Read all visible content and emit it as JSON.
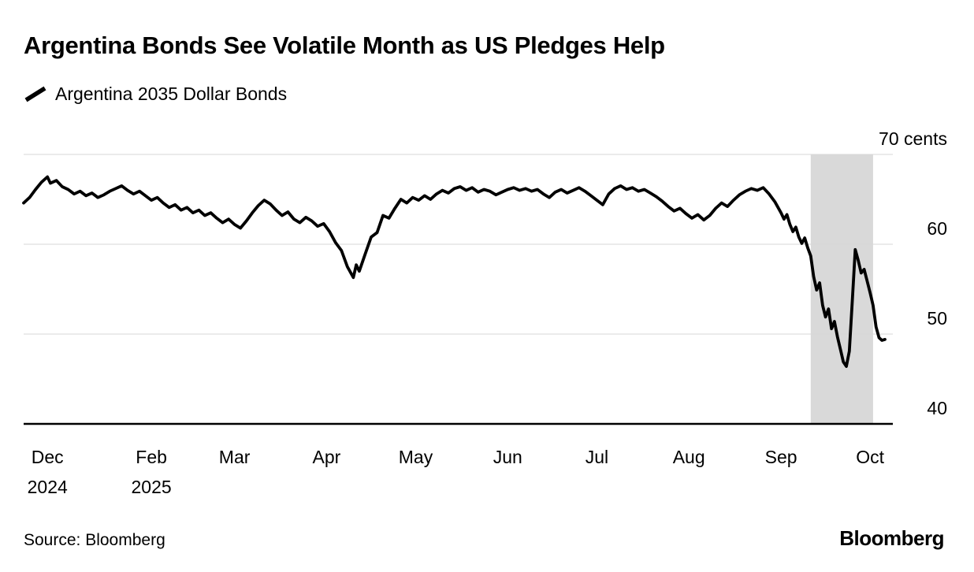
{
  "header": {
    "title": "Argentina Bonds See Volatile Month as US Pledges Help"
  },
  "legend": {
    "label": "Argentina 2035 Dollar Bonds",
    "swatch_color": "#000000"
  },
  "footer": {
    "source": "Source: Bloomberg",
    "brand": "Bloomberg"
  },
  "chart_data": {
    "type": "line",
    "title": "Argentina Bonds See Volatile Month as US Pledges Help",
    "series_name": "Argentina 2035 Dollar Bonds",
    "ylabel": "cents",
    "ylim": [
      40,
      70
    ],
    "grid": true,
    "legend_position": "top-left",
    "x_unit": "days since start of chart (late Dec 2024) through early Oct 2025",
    "days_total": 290,
    "y_ticks": [
      {
        "value": 70,
        "label": "70 cents"
      },
      {
        "value": 60,
        "label": "60"
      },
      {
        "value": 50,
        "label": "50"
      },
      {
        "value": 40,
        "label": "40"
      }
    ],
    "x_ticks": [
      {
        "day": 8,
        "label": "Dec",
        "sublabel": "2024"
      },
      {
        "day": 43,
        "label": "Feb",
        "sublabel": "2025"
      },
      {
        "day": 71,
        "label": "Mar"
      },
      {
        "day": 102,
        "label": "Apr"
      },
      {
        "day": 132,
        "label": "May"
      },
      {
        "day": 163,
        "label": "Jun"
      },
      {
        "day": 193,
        "label": "Jul"
      },
      {
        "day": 224,
        "label": "Aug"
      },
      {
        "day": 255,
        "label": "Sep"
      },
      {
        "day": 285,
        "label": "Oct"
      }
    ],
    "highlight_region": {
      "start_day": 265,
      "end_day": 286,
      "color": "#d9d9d9"
    },
    "line_color": "#000000",
    "grid_color": "#d7d7d7",
    "points": [
      [
        0,
        64.6
      ],
      [
        2,
        65.2
      ],
      [
        4,
        66.1
      ],
      [
        6,
        66.9
      ],
      [
        8,
        67.5
      ],
      [
        9,
        66.8
      ],
      [
        11,
        67.1
      ],
      [
        13,
        66.4
      ],
      [
        15,
        66.1
      ],
      [
        17,
        65.6
      ],
      [
        19,
        65.9
      ],
      [
        21,
        65.4
      ],
      [
        23,
        65.7
      ],
      [
        25,
        65.2
      ],
      [
        27,
        65.5
      ],
      [
        29,
        65.9
      ],
      [
        31,
        66.2
      ],
      [
        33,
        66.5
      ],
      [
        35,
        66.0
      ],
      [
        37,
        65.6
      ],
      [
        39,
        65.9
      ],
      [
        41,
        65.4
      ],
      [
        43,
        64.9
      ],
      [
        45,
        65.2
      ],
      [
        47,
        64.6
      ],
      [
        49,
        64.1
      ],
      [
        51,
        64.4
      ],
      [
        53,
        63.8
      ],
      [
        55,
        64.1
      ],
      [
        57,
        63.5
      ],
      [
        59,
        63.8
      ],
      [
        61,
        63.2
      ],
      [
        63,
        63.5
      ],
      [
        65,
        62.9
      ],
      [
        67,
        62.4
      ],
      [
        69,
        62.8
      ],
      [
        71,
        62.2
      ],
      [
        73,
        61.8
      ],
      [
        75,
        62.6
      ],
      [
        77,
        63.5
      ],
      [
        79,
        64.3
      ],
      [
        81,
        64.9
      ],
      [
        83,
        64.5
      ],
      [
        85,
        63.8
      ],
      [
        87,
        63.2
      ],
      [
        89,
        63.6
      ],
      [
        91,
        62.8
      ],
      [
        93,
        62.4
      ],
      [
        95,
        63.0
      ],
      [
        97,
        62.6
      ],
      [
        99,
        62.0
      ],
      [
        101,
        62.3
      ],
      [
        103,
        61.4
      ],
      [
        105,
        60.2
      ],
      [
        107,
        59.3
      ],
      [
        109,
        57.5
      ],
      [
        111,
        56.3
      ],
      [
        112,
        57.7
      ],
      [
        113,
        57.0
      ],
      [
        115,
        58.9
      ],
      [
        117,
        60.8
      ],
      [
        119,
        61.3
      ],
      [
        121,
        63.2
      ],
      [
        123,
        62.9
      ],
      [
        125,
        64.0
      ],
      [
        127,
        65.0
      ],
      [
        129,
        64.6
      ],
      [
        131,
        65.2
      ],
      [
        133,
        64.9
      ],
      [
        135,
        65.4
      ],
      [
        137,
        65.0
      ],
      [
        139,
        65.6
      ],
      [
        141,
        66.0
      ],
      [
        143,
        65.7
      ],
      [
        145,
        66.2
      ],
      [
        147,
        66.4
      ],
      [
        149,
        66.0
      ],
      [
        151,
        66.3
      ],
      [
        153,
        65.8
      ],
      [
        155,
        66.1
      ],
      [
        157,
        65.9
      ],
      [
        159,
        65.5
      ],
      [
        161,
        65.8
      ],
      [
        163,
        66.1
      ],
      [
        165,
        66.3
      ],
      [
        167,
        66.0
      ],
      [
        169,
        66.2
      ],
      [
        171,
        65.9
      ],
      [
        173,
        66.1
      ],
      [
        175,
        65.6
      ],
      [
        177,
        65.2
      ],
      [
        179,
        65.8
      ],
      [
        181,
        66.1
      ],
      [
        183,
        65.7
      ],
      [
        185,
        66.0
      ],
      [
        187,
        66.3
      ],
      [
        189,
        65.9
      ],
      [
        191,
        65.4
      ],
      [
        193,
        64.9
      ],
      [
        195,
        64.4
      ],
      [
        197,
        65.6
      ],
      [
        199,
        66.2
      ],
      [
        201,
        66.5
      ],
      [
        203,
        66.1
      ],
      [
        205,
        66.3
      ],
      [
        207,
        65.9
      ],
      [
        209,
        66.1
      ],
      [
        211,
        65.7
      ],
      [
        213,
        65.3
      ],
      [
        215,
        64.8
      ],
      [
        217,
        64.2
      ],
      [
        219,
        63.7
      ],
      [
        221,
        64.0
      ],
      [
        223,
        63.4
      ],
      [
        225,
        62.9
      ],
      [
        227,
        63.3
      ],
      [
        229,
        62.7
      ],
      [
        231,
        63.2
      ],
      [
        233,
        64.0
      ],
      [
        235,
        64.6
      ],
      [
        237,
        64.2
      ],
      [
        239,
        64.9
      ],
      [
        241,
        65.5
      ],
      [
        243,
        65.9
      ],
      [
        245,
        66.2
      ],
      [
        247,
        66.0
      ],
      [
        249,
        66.3
      ],
      [
        251,
        65.6
      ],
      [
        253,
        64.7
      ],
      [
        255,
        63.5
      ],
      [
        256,
        62.8
      ],
      [
        257,
        63.3
      ],
      [
        258,
        62.2
      ],
      [
        259,
        61.4
      ],
      [
        260,
        61.9
      ],
      [
        261,
        60.8
      ],
      [
        262,
        60.1
      ],
      [
        263,
        60.7
      ],
      [
        264,
        59.6
      ],
      [
        265,
        58.7
      ],
      [
        266,
        56.4
      ],
      [
        267,
        54.9
      ],
      [
        268,
        55.7
      ],
      [
        269,
        53.2
      ],
      [
        270,
        51.9
      ],
      [
        271,
        52.8
      ],
      [
        272,
        50.6
      ],
      [
        273,
        51.4
      ],
      [
        274,
        49.7
      ],
      [
        275,
        48.3
      ],
      [
        276,
        46.9
      ],
      [
        277,
        46.4
      ],
      [
        278,
        48.1
      ],
      [
        279,
        53.6
      ],
      [
        280,
        59.4
      ],
      [
        281,
        58.2
      ],
      [
        282,
        56.8
      ],
      [
        283,
        57.2
      ],
      [
        284,
        55.9
      ],
      [
        285,
        54.6
      ],
      [
        286,
        53.2
      ],
      [
        287,
        50.8
      ],
      [
        288,
        49.6
      ],
      [
        289,
        49.3
      ],
      [
        290,
        49.4
      ]
    ]
  }
}
